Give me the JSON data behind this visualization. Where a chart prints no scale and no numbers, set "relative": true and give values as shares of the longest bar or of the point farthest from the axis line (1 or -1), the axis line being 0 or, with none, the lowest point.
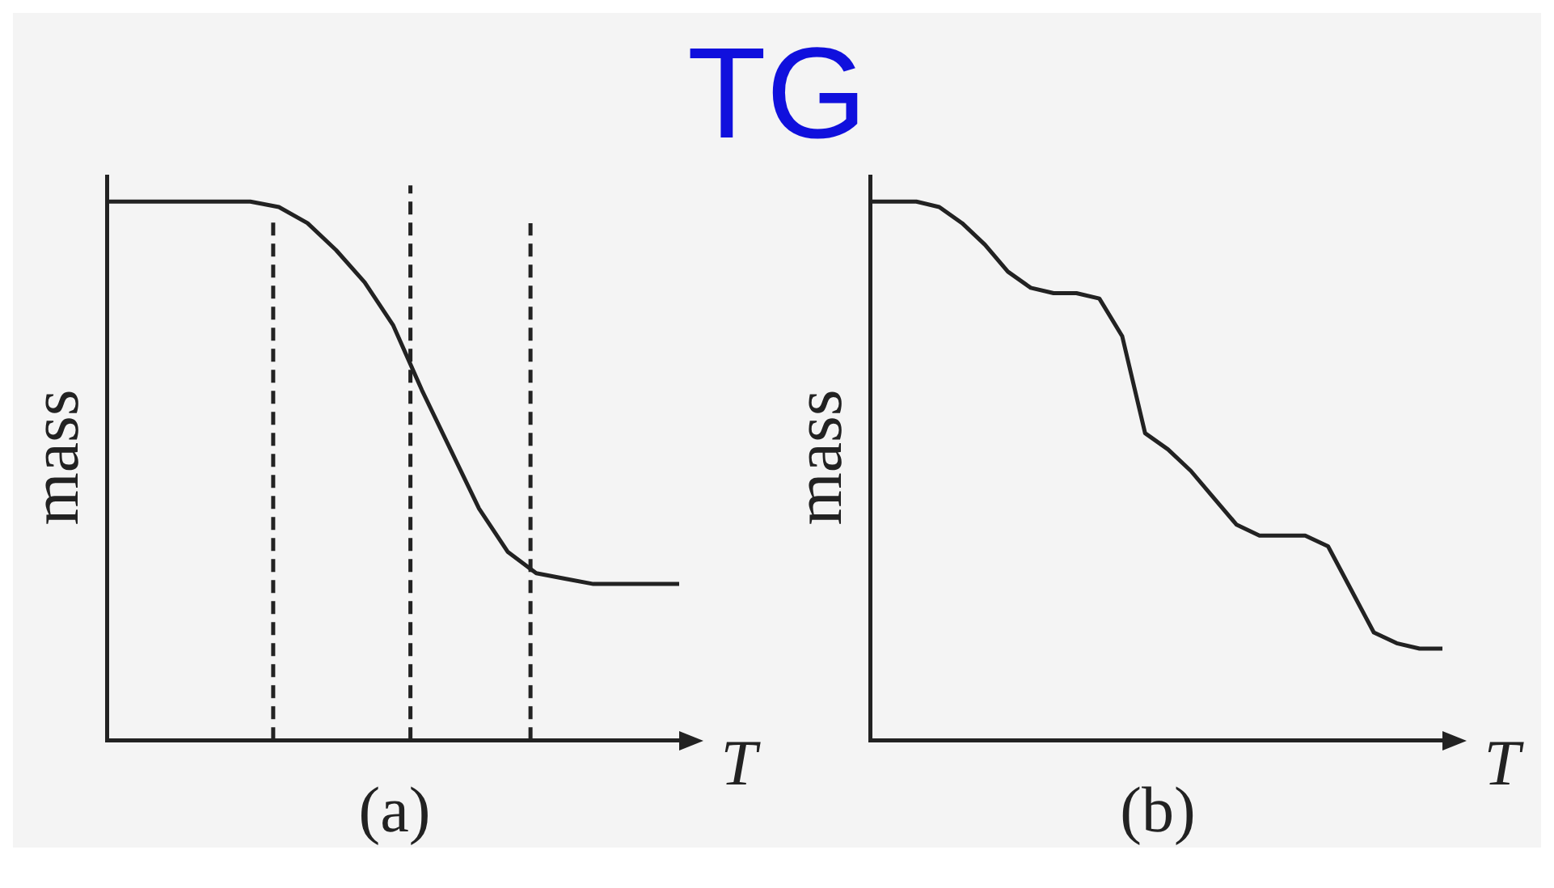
{
  "chart_data": [
    {
      "type": "line",
      "title": "TG",
      "xlabel": "T",
      "ylabel": "mass",
      "relative": true,
      "grid": false,
      "legend": false,
      "marker": "none",
      "line_style": "solid",
      "annotations": [
        "(a)"
      ],
      "categories": [
        null,
        null,
        null,
        null,
        null,
        null,
        null,
        null,
        null,
        null,
        null,
        null,
        null,
        null,
        null,
        null,
        null,
        null,
        null,
        null,
        null
      ],
      "series": [
        {
          "color": "#222222",
          "values": [
            1,
            1,
            1,
            1,
            1,
            1,
            0.99,
            0.96,
            0.91,
            0.85,
            0.77,
            0.65,
            0.54,
            0.43,
            0.35,
            0.31,
            0.3,
            0.29,
            0.29,
            0.29,
            0.29
          ]
        }
      ]
    },
    {
      "type": "line",
      "xlabel": "T",
      "ylabel": "mass",
      "relative": true,
      "grid": false,
      "legend": false,
      "marker": "none",
      "line_style": "solid",
      "annotations": [
        "(b)"
      ],
      "categories": [
        null,
        null,
        null,
        null,
        null,
        null,
        null,
        null,
        null,
        null,
        null,
        null,
        null,
        null,
        null,
        null,
        null,
        null,
        null,
        null,
        null,
        null,
        null,
        null,
        null,
        null
      ],
      "series": [
        {
          "color": "#222222",
          "values": [
            1,
            1,
            1,
            0.99,
            0.96,
            0.92,
            0.87,
            0.84,
            0.83,
            0.83,
            0.82,
            0.75,
            0.57,
            0.54,
            0.5,
            0.45,
            0.4,
            0.38,
            0.38,
            0.38,
            0.36,
            0.28,
            0.2,
            0.18,
            0.17,
            0.17
          ]
        }
      ]
    }
  ]
}
